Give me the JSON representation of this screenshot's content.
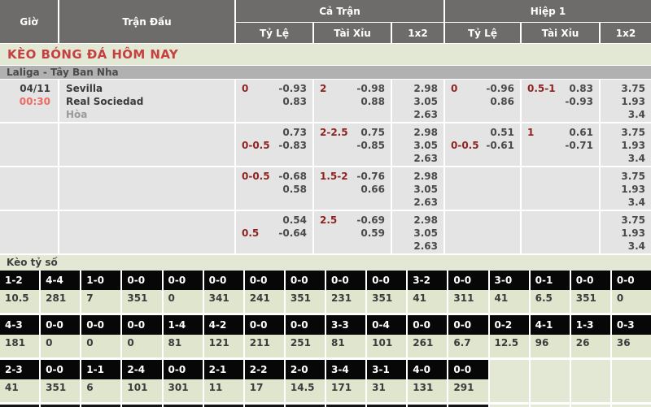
{
  "header": {
    "col_time": "Giờ",
    "col_match": "Trận Đấu",
    "group_full": "Cả Trận",
    "group_half": "Hiệp 1",
    "sub_handicap": "Tỷ Lệ",
    "sub_overunder": "Tài Xỉu",
    "sub_1x2": "1x2"
  },
  "page_title": "KÈO BÓNG ĐÁ HÔM NAY",
  "league": "Laliga - Tây Ban Nha",
  "match": {
    "date": "04/11",
    "time": "00:30",
    "home": "Sevilla",
    "away": "Real Sociedad",
    "draw": "Hòa"
  },
  "odds_rows": [
    {
      "ft_hc_l1": "0",
      "ft_hc_o1": "-0.93",
      "ft_hc_l2": "",
      "ft_hc_o2": "0.83",
      "ft_ou_line": "2",
      "ft_ou_o1": "-0.98",
      "ft_ou_o2": "0.88",
      "ft_1x2_1": "2.98",
      "ft_1x2_2": "3.05",
      "ft_1x2_3": "2.63",
      "h1_hc_l1": "0",
      "h1_hc_o1": "-0.96",
      "h1_hc_l2": "",
      "h1_hc_o2": "0.86",
      "h1_ou_line": "0.5-1",
      "h1_ou_o1": "0.83",
      "h1_ou_o2": "-0.93",
      "h1_1x2_1": "3.75",
      "h1_1x2_2": "1.93",
      "h1_1x2_3": "3.4"
    },
    {
      "ft_hc_l1": "",
      "ft_hc_o1": "0.73",
      "ft_hc_l2": "0-0.5",
      "ft_hc_o2": "-0.83",
      "ft_ou_line": "2-2.5",
      "ft_ou_o1": "0.75",
      "ft_ou_o2": "-0.85",
      "ft_1x2_1": "2.98",
      "ft_1x2_2": "3.05",
      "ft_1x2_3": "2.63",
      "h1_hc_l1": "",
      "h1_hc_o1": "0.51",
      "h1_hc_l2": "0-0.5",
      "h1_hc_o2": "-0.61",
      "h1_ou_line": "1",
      "h1_ou_o1": "0.61",
      "h1_ou_o2": "-0.71",
      "h1_1x2_1": "3.75",
      "h1_1x2_2": "1.93",
      "h1_1x2_3": "3.4"
    },
    {
      "ft_hc_l1": "0-0.5",
      "ft_hc_o1": "-0.68",
      "ft_hc_l2": "",
      "ft_hc_o2": "0.58",
      "ft_ou_line": "1.5-2",
      "ft_ou_o1": "-0.76",
      "ft_ou_o2": "0.66",
      "ft_1x2_1": "2.98",
      "ft_1x2_2": "3.05",
      "ft_1x2_3": "2.63",
      "h1_hc_l1": "",
      "h1_hc_o1": "",
      "h1_hc_l2": "",
      "h1_hc_o2": "",
      "h1_ou_line": "",
      "h1_ou_o1": "",
      "h1_ou_o2": "",
      "h1_1x2_1": "3.75",
      "h1_1x2_2": "1.93",
      "h1_1x2_3": "3.4"
    },
    {
      "ft_hc_l1": "",
      "ft_hc_o1": "0.54",
      "ft_hc_l2": "0.5",
      "ft_hc_o2": "-0.64",
      "ft_ou_line": "2.5",
      "ft_ou_o1": "-0.69",
      "ft_ou_o2": "0.59",
      "ft_1x2_1": "2.98",
      "ft_1x2_2": "3.05",
      "ft_1x2_3": "2.63",
      "h1_hc_l1": "",
      "h1_hc_o1": "",
      "h1_hc_l2": "",
      "h1_hc_o2": "",
      "h1_ou_line": "",
      "h1_ou_o1": "",
      "h1_ou_o2": "",
      "h1_1x2_1": "3.75",
      "h1_1x2_2": "1.93",
      "h1_1x2_3": "3.4"
    }
  ],
  "score_section": {
    "title": "Kèo tỷ số",
    "cutoff_columns": 12,
    "rows": [
      {
        "scores": [
          "1-2",
          "4-4",
          "1-0",
          "0-0",
          "0-0",
          "0-0",
          "0-0",
          "0-0",
          "0-0",
          "0-0",
          "3-2",
          "0-0",
          "3-0",
          "0-1",
          "0-0",
          "0-0"
        ],
        "values": [
          "10.5",
          "281",
          "7",
          "351",
          "0",
          "341",
          "241",
          "351",
          "231",
          "351",
          "41",
          "311",
          "41",
          "6.5",
          "351",
          "0"
        ]
      },
      {
        "scores": [
          "4-3",
          "0-0",
          "0-0",
          "0-0",
          "1-4",
          "4-2",
          "0-0",
          "0-0",
          "3-3",
          "0-4",
          "0-0",
          "0-0",
          "0-2",
          "4-1",
          "1-3",
          "0-3"
        ],
        "values": [
          "181",
          "0",
          "0",
          "0",
          "81",
          "121",
          "211",
          "251",
          "81",
          "101",
          "261",
          "6.7",
          "12.5",
          "96",
          "26",
          "36"
        ]
      },
      {
        "scores": [
          "2-3",
          "0-0",
          "1-1",
          "2-4",
          "0-0",
          "2-1",
          "2-2",
          "2-0",
          "3-4",
          "3-1",
          "4-0",
          "0-0",
          "",
          "",
          "",
          ""
        ],
        "values": [
          "41",
          "351",
          "6",
          "101",
          "301",
          "11",
          "17",
          "14.5",
          "171",
          "31",
          "131",
          "291",
          "",
          "",
          "",
          ""
        ]
      }
    ]
  },
  "colors": {
    "header_bg": "#6e6b6b",
    "band_green": "#e3e8d5",
    "title_red": "#c64040",
    "time_red": "#ee6a62",
    "handicap_maroon": "#8e2420",
    "league_gray": "#b1b1b1",
    "cell_gray": "#e4e4e4",
    "score_black": "#070707",
    "score_value_green": "#e0e5cd"
  }
}
